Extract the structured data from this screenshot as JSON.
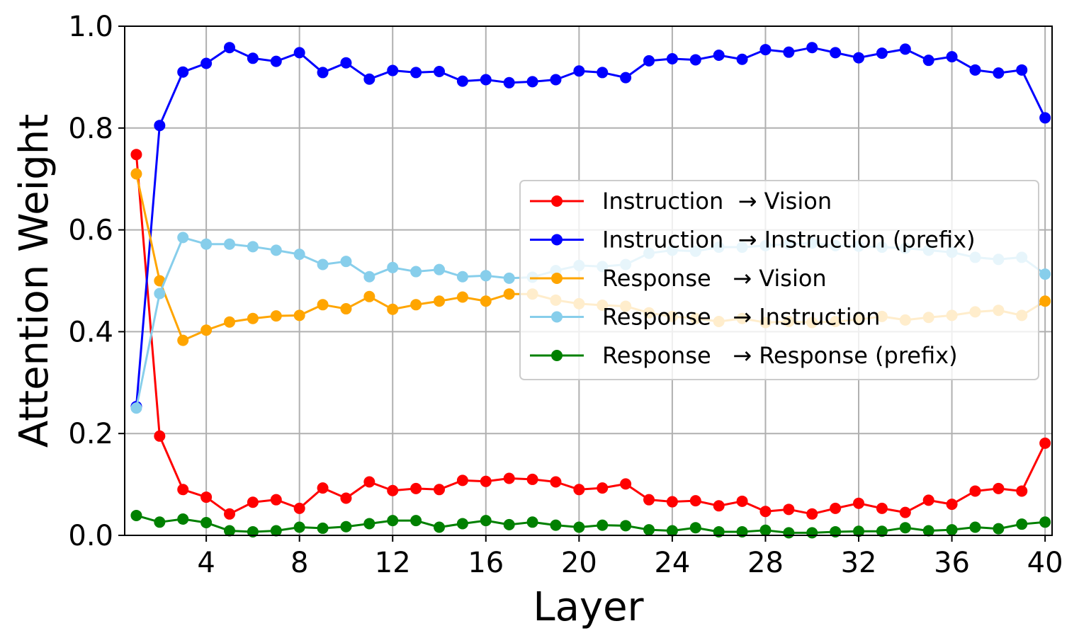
{
  "chart_data": {
    "type": "line",
    "title": "",
    "xlabel": "Layer",
    "ylabel": "Attention Weight",
    "xlim": [
      0.5,
      40.3
    ],
    "ylim": [
      0.0,
      1.0
    ],
    "grid": true,
    "legend_position": "center-right",
    "xticks": [
      4,
      8,
      12,
      16,
      20,
      24,
      28,
      32,
      36,
      40
    ],
    "yticks": [
      0.0,
      0.2,
      0.4,
      0.6,
      0.8,
      1.0
    ],
    "xtick_labels": [
      "4",
      "8",
      "12",
      "16",
      "20",
      "24",
      "28",
      "32",
      "36",
      "40"
    ],
    "ytick_labels": [
      "0.0",
      "0.2",
      "0.4",
      "0.6",
      "0.8",
      "1.0"
    ],
    "x": [
      1,
      2,
      3,
      4,
      5,
      6,
      7,
      8,
      9,
      10,
      11,
      12,
      13,
      14,
      15,
      16,
      17,
      18,
      19,
      20,
      21,
      22,
      23,
      24,
      25,
      26,
      27,
      28,
      29,
      30,
      31,
      32,
      33,
      34,
      35,
      36,
      37,
      38,
      39,
      40
    ],
    "series": [
      {
        "name": "Instruction  → Vision",
        "color": "#ff0000",
        "values": [
          0.748,
          0.195,
          0.09,
          0.075,
          0.042,
          0.065,
          0.07,
          0.053,
          0.093,
          0.073,
          0.105,
          0.088,
          0.092,
          0.09,
          0.108,
          0.106,
          0.112,
          0.11,
          0.105,
          0.09,
          0.093,
          0.101,
          0.07,
          0.066,
          0.068,
          0.058,
          0.067,
          0.047,
          0.051,
          0.042,
          0.053,
          0.063,
          0.053,
          0.045,
          0.069,
          0.061,
          0.087,
          0.092,
          0.087,
          0.181
        ]
      },
      {
        "name": "Instruction  → Instruction (prefix)",
        "color": "#0000ff",
        "values": [
          0.253,
          0.805,
          0.91,
          0.927,
          0.958,
          0.937,
          0.931,
          0.948,
          0.909,
          0.928,
          0.896,
          0.913,
          0.909,
          0.911,
          0.892,
          0.895,
          0.889,
          0.891,
          0.895,
          0.912,
          0.909,
          0.899,
          0.932,
          0.936,
          0.934,
          0.943,
          0.935,
          0.954,
          0.949,
          0.958,
          0.948,
          0.938,
          0.947,
          0.955,
          0.933,
          0.94,
          0.914,
          0.908,
          0.914,
          0.82
        ]
      },
      {
        "name": "Response   → Vision",
        "color": "#ffa500",
        "values": [
          0.71,
          0.5,
          0.383,
          0.403,
          0.419,
          0.426,
          0.431,
          0.432,
          0.453,
          0.445,
          0.469,
          0.444,
          0.453,
          0.46,
          0.468,
          0.46,
          0.474,
          0.474,
          0.462,
          0.455,
          0.452,
          0.45,
          0.437,
          0.43,
          0.426,
          0.42,
          0.426,
          0.418,
          0.42,
          0.418,
          0.42,
          0.424,
          0.43,
          0.423,
          0.428,
          0.432,
          0.439,
          0.442,
          0.432,
          0.46
        ]
      },
      {
        "name": "Response   → Instruction",
        "color": "#87ceeb",
        "values": [
          0.25,
          0.475,
          0.585,
          0.572,
          0.572,
          0.567,
          0.56,
          0.552,
          0.532,
          0.538,
          0.508,
          0.526,
          0.518,
          0.522,
          0.508,
          0.51,
          0.505,
          0.507,
          0.52,
          0.53,
          0.528,
          0.532,
          0.554,
          0.56,
          0.558,
          0.566,
          0.566,
          0.569,
          0.572,
          0.574,
          0.569,
          0.568,
          0.566,
          0.564,
          0.56,
          0.556,
          0.546,
          0.542,
          0.546,
          0.513
        ]
      },
      {
        "name": "Response   → Response (prefix)",
        "color": "#008000",
        "values": [
          0.039,
          0.026,
          0.032,
          0.025,
          0.009,
          0.007,
          0.009,
          0.016,
          0.014,
          0.017,
          0.023,
          0.029,
          0.029,
          0.016,
          0.023,
          0.029,
          0.021,
          0.026,
          0.02,
          0.016,
          0.02,
          0.019,
          0.011,
          0.009,
          0.015,
          0.007,
          0.007,
          0.01,
          0.005,
          0.005,
          0.007,
          0.008,
          0.008,
          0.015,
          0.009,
          0.011,
          0.016,
          0.013,
          0.022,
          0.026
        ]
      }
    ]
  }
}
